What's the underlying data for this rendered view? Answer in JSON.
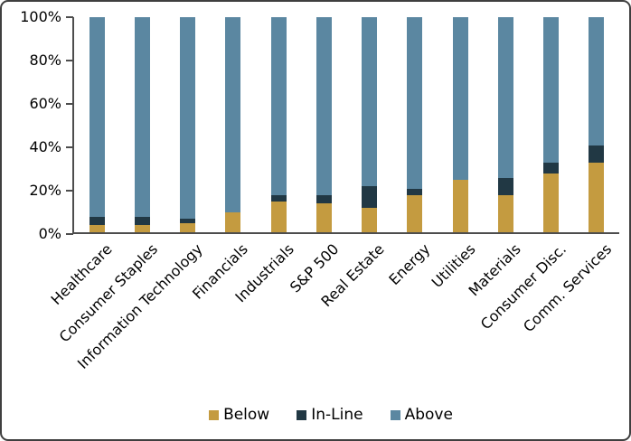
{
  "chart_data": {
    "type": "bar",
    "stacked": true,
    "stacked_total": 100,
    "title": "",
    "xlabel": "",
    "ylabel": "",
    "ylim": [
      0,
      100
    ],
    "yticks": [
      "0%",
      "20%",
      "40%",
      "60%",
      "80%",
      "100%"
    ],
    "ytick_values": [
      0,
      20,
      40,
      60,
      80,
      100
    ],
    "grid": false,
    "legend_position": "bottom",
    "categories": [
      "Healthcare",
      "Consumer Staples",
      "Information Technology",
      "Financials",
      "Industrials",
      "S&P 500",
      "Real Estate",
      "Energy",
      "Utilities",
      "Materials",
      "Consumer Disc.",
      "Comm. Services"
    ],
    "series": [
      {
        "name": "Below",
        "color": "#C49B40",
        "values": [
          4,
          4,
          5,
          10,
          15,
          14,
          12,
          18,
          25,
          18,
          28,
          33
        ]
      },
      {
        "name": "In-Line",
        "color": "#213844",
        "values": [
          4,
          4,
          2,
          0,
          3,
          4,
          10,
          3,
          0,
          8,
          5,
          8
        ]
      },
      {
        "name": "Above",
        "color": "#5B87A1",
        "values": [
          92,
          92,
          93,
          90,
          82,
          82,
          78,
          79,
          75,
          74,
          67,
          59
        ]
      }
    ],
    "colors": {
      "axis_line": "#4d4d4d",
      "text": "#000000",
      "frame_border": "#3f3f3f",
      "background": "#ffffff"
    }
  }
}
